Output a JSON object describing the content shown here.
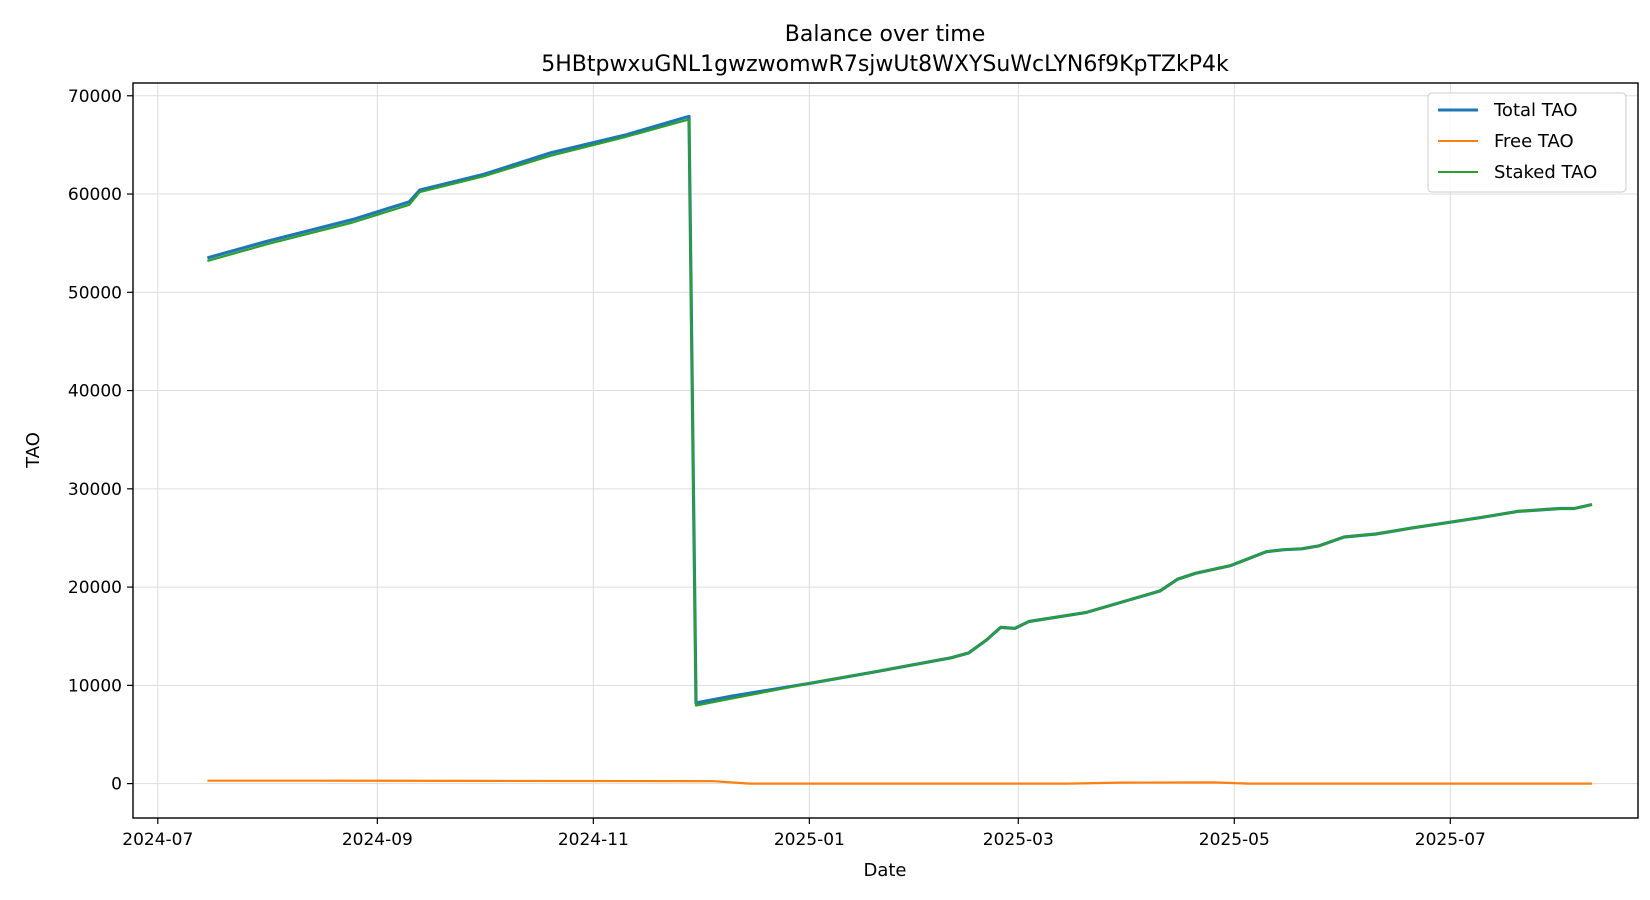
{
  "chart_data": {
    "type": "line",
    "title": "Balance over time",
    "subtitle": "5HBtpwxuGNL1gwzwomwR7sjwUt8WXYSuWcLYN6f9KpTZkP4k",
    "xlabel": "Date",
    "ylabel": "TAO",
    "x_tick_labels": [
      "2024-07",
      "2024-09",
      "2024-11",
      "2025-01",
      "2025-03",
      "2025-05",
      "2025-07"
    ],
    "y_tick_labels": [
      "0",
      "10000",
      "20000",
      "30000",
      "40000",
      "50000",
      "60000",
      "70000"
    ],
    "y_ticks": [
      0,
      10000,
      20000,
      30000,
      40000,
      50000,
      60000,
      70000
    ],
    "ylim": [
      -3500,
      71300
    ],
    "xlim": [
      "2024-06-24",
      "2025-08-23"
    ],
    "grid": true,
    "legend_position": "top-right",
    "series": [
      {
        "name": "Total TAO",
        "color": "#1f77b4",
        "points": [
          [
            "2024-07-15",
            53500
          ],
          [
            "2024-08-01",
            55200
          ],
          [
            "2024-08-25",
            57400
          ],
          [
            "2024-09-10",
            59200
          ],
          [
            "2024-09-13",
            60400
          ],
          [
            "2024-10-01",
            62000
          ],
          [
            "2024-10-20",
            64200
          ],
          [
            "2024-11-10",
            66000
          ],
          [
            "2024-11-28",
            67900
          ],
          [
            "2024-11-30",
            8200
          ],
          [
            "2024-12-10",
            8900
          ],
          [
            "2025-01-01",
            10200
          ],
          [
            "2025-01-20",
            11400
          ],
          [
            "2025-02-10",
            12800
          ],
          [
            "2025-02-15",
            13300
          ],
          [
            "2025-02-20",
            14600
          ],
          [
            "2025-02-24",
            15900
          ],
          [
            "2025-02-28",
            15800
          ],
          [
            "2025-03-04",
            16500
          ],
          [
            "2025-03-20",
            17400
          ],
          [
            "2025-04-10",
            19600
          ],
          [
            "2025-04-15",
            20800
          ],
          [
            "2025-04-20",
            21400
          ],
          [
            "2025-04-30",
            22200
          ],
          [
            "2025-05-10",
            23600
          ],
          [
            "2025-05-15",
            23800
          ],
          [
            "2025-05-20",
            23900
          ],
          [
            "2025-05-25",
            24200
          ],
          [
            "2025-06-01",
            25100
          ],
          [
            "2025-06-10",
            25400
          ],
          [
            "2025-06-20",
            26000
          ],
          [
            "2025-07-01",
            26600
          ],
          [
            "2025-07-10",
            27100
          ],
          [
            "2025-07-20",
            27700
          ],
          [
            "2025-08-01",
            28000
          ],
          [
            "2025-08-05",
            28000
          ],
          [
            "2025-08-10",
            28400
          ]
        ]
      },
      {
        "name": "Free TAO",
        "color": "#ff7f0e",
        "points": [
          [
            "2024-07-15",
            300
          ],
          [
            "2024-08-15",
            300
          ],
          [
            "2024-10-01",
            280
          ],
          [
            "2024-11-28",
            260
          ],
          [
            "2024-12-05",
            250
          ],
          [
            "2024-12-15",
            0
          ],
          [
            "2025-01-15",
            0
          ],
          [
            "2025-03-15",
            0
          ],
          [
            "2025-03-30",
            100
          ],
          [
            "2025-04-25",
            120
          ],
          [
            "2025-05-05",
            0
          ],
          [
            "2025-06-15",
            0
          ],
          [
            "2025-08-10",
            0
          ]
        ]
      },
      {
        "name": "Staked TAO",
        "color": "#2ca02c",
        "points": [
          [
            "2024-07-15",
            53200
          ],
          [
            "2024-08-01",
            54900
          ],
          [
            "2024-08-25",
            57100
          ],
          [
            "2024-09-10",
            58900
          ],
          [
            "2024-09-13",
            60200
          ],
          [
            "2024-10-01",
            61800
          ],
          [
            "2024-10-20",
            63900
          ],
          [
            "2024-11-10",
            65800
          ],
          [
            "2024-11-28",
            67600
          ],
          [
            "2024-11-30",
            7950
          ],
          [
            "2024-12-10",
            8650
          ],
          [
            "2025-01-01",
            10200
          ],
          [
            "2025-01-20",
            11400
          ],
          [
            "2025-02-10",
            12800
          ],
          [
            "2025-02-15",
            13300
          ],
          [
            "2025-02-20",
            14600
          ],
          [
            "2025-02-24",
            15900
          ],
          [
            "2025-02-28",
            15800
          ],
          [
            "2025-03-04",
            16500
          ],
          [
            "2025-03-20",
            17400
          ],
          [
            "2025-04-10",
            19600
          ],
          [
            "2025-04-15",
            20800
          ],
          [
            "2025-04-20",
            21400
          ],
          [
            "2025-04-30",
            22200
          ],
          [
            "2025-05-10",
            23600
          ],
          [
            "2025-05-15",
            23800
          ],
          [
            "2025-05-20",
            23900
          ],
          [
            "2025-05-25",
            24200
          ],
          [
            "2025-06-01",
            25100
          ],
          [
            "2025-06-10",
            25400
          ],
          [
            "2025-06-20",
            26000
          ],
          [
            "2025-07-01",
            26600
          ],
          [
            "2025-07-10",
            27100
          ],
          [
            "2025-07-20",
            27700
          ],
          [
            "2025-08-01",
            28000
          ],
          [
            "2025-08-05",
            28000
          ],
          [
            "2025-08-10",
            28400
          ]
        ]
      }
    ]
  }
}
